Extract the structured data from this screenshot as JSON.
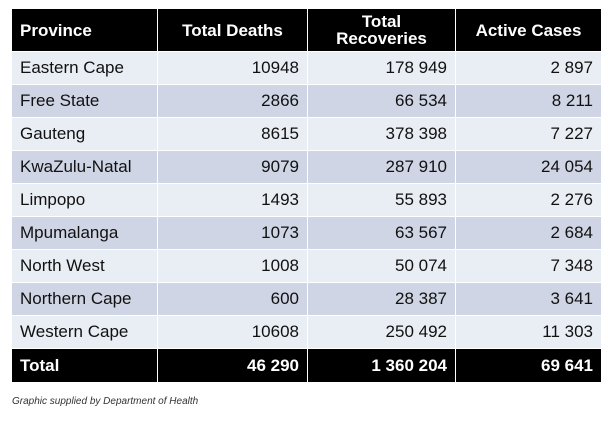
{
  "chart_data": {
    "type": "table",
    "columns": [
      "Province",
      "Total Deaths",
      "Total Recoveries",
      "Active Cases"
    ],
    "header_display": {
      "province": "Province",
      "deaths": "Total Deaths",
      "recoveries_line1": "Total",
      "recoveries_line2": "Recoveries",
      "active": "Active Cases"
    },
    "rows": [
      {
        "province": "Eastern Cape",
        "deaths": "10948",
        "recoveries": "178 949",
        "active": "2 897"
      },
      {
        "province": "Free State",
        "deaths": "2866",
        "recoveries": "66 534",
        "active": "8 211"
      },
      {
        "province": "Gauteng",
        "deaths": "8615",
        "recoveries": "378 398",
        "active": "7 227"
      },
      {
        "province": "KwaZulu-Natal",
        "deaths": "9079",
        "recoveries": "287 910",
        "active": "24 054"
      },
      {
        "province": "Limpopo",
        "deaths": "1493",
        "recoveries": "55 893",
        "active": "2 276"
      },
      {
        "province": "Mpumalanga",
        "deaths": "1073",
        "recoveries": "63 567",
        "active": "2 684"
      },
      {
        "province": "North West",
        "deaths": "1008",
        "recoveries": "50 074",
        "active": "7 348"
      },
      {
        "province": "Northern Cape",
        "deaths": "600",
        "recoveries": "28 387",
        "active": "3 641"
      },
      {
        "province": "Western Cape",
        "deaths": "10608",
        "recoveries": "250 492",
        "active": "11 303"
      }
    ],
    "total": {
      "label": "Total",
      "deaths": "46 290",
      "recoveries": "1 360 204",
      "active": "69 641"
    }
  },
  "credit": "Graphic supplied by Department of Health",
  "colors": {
    "header_bg": "#000000",
    "header_text": "#ffffff",
    "row_light": "#e9edf4",
    "row_dark": "#cfd5e4"
  }
}
